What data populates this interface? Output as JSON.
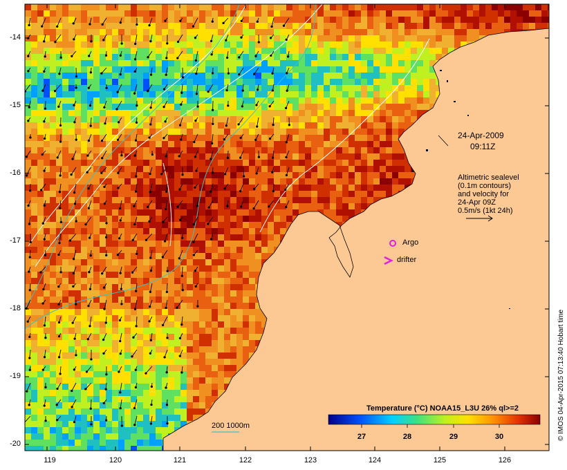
{
  "map": {
    "date": "24-Apr-2009",
    "time": "09:11Z",
    "legend_lines": [
      "Altimetric sealevel",
      "(0.1m contours)",
      "and velocity for",
      "24-Apr 09Z",
      "0.5m/s (1kt 24h)"
    ],
    "argo_label": "Argo",
    "drifter_label": "drifter",
    "depth_label": "200  1000m",
    "credit": "© IMOS 04-Apr-2015 07:13:40 Hobart time",
    "colorbar": {
      "title": "Temperature (°C) NOAA15_L3U 26% ql>=2",
      "ticks": [
        "27",
        "28",
        "29",
        "30"
      ]
    },
    "lat_ticks": [
      "-14",
      "-15",
      "-16",
      "-17",
      "-18",
      "-19",
      "-20"
    ],
    "lon_ticks": [
      "119",
      "120",
      "121",
      "122",
      "123",
      "124",
      "125",
      "126"
    ],
    "colors": {
      "land": "#fcc995",
      "argo": "#e020e0",
      "drifter": "#e020e0",
      "depth_contour": "#40c0c0"
    }
  }
}
